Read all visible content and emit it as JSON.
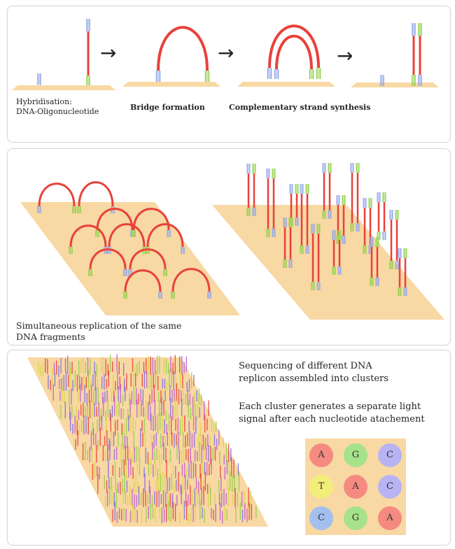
{
  "panel1": {
    "steps": [
      {
        "label_line1": "Hybridisation:",
        "label_line2": "DNA-Oligonucleotide"
      },
      {
        "label": "Bridge formation"
      },
      {
        "label": "Complementary strand synthesis"
      }
    ],
    "arrow_glyph": "→"
  },
  "panel2": {
    "caption_line1": "Simultaneous replication of the same",
    "caption_line2": "DNA fragments"
  },
  "panel3": {
    "caption1_line1": "Sequencing of different DNA",
    "caption1_line2": "replicon assembled into clusters",
    "caption2_line1": "Each cluster generates a separate light",
    "caption2_line2": "signal after each nucleotide atachement",
    "grid": [
      {
        "letter": "A",
        "color": "#f58a80"
      },
      {
        "letter": "G",
        "color": "#a5e28a"
      },
      {
        "letter": "C",
        "color": "#b8b3f2"
      },
      {
        "letter": "T",
        "color": "#f2ee7a"
      },
      {
        "letter": "A",
        "color": "#f58a80"
      },
      {
        "letter": "C",
        "color": "#b8b3f2"
      },
      {
        "letter": "C",
        "color": "#a3bff0"
      },
      {
        "letter": "G",
        "color": "#a5e28a"
      },
      {
        "letter": "A",
        "color": "#f58a80"
      }
    ]
  },
  "colors": {
    "strand_red": "#e8413a",
    "primer_green": "#8ed14a",
    "primer_blue": "#8ea6ea",
    "surface": "#f8d8a3"
  }
}
